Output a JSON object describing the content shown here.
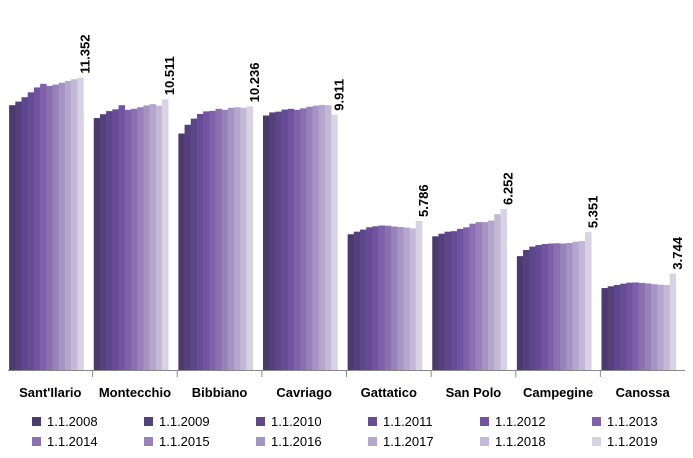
{
  "chart_data": {
    "type": "bar",
    "categories": [
      "Sant'Ilario",
      "Montecchio",
      "Bibbiano",
      "Cavriago",
      "Gattatico",
      "San Polo",
      "Campegine",
      "Canossa"
    ],
    "series": [
      {
        "name": "1.1.2008",
        "color": "#4b3a6b",
        "values": [
          10280,
          9780,
          9180,
          9880,
          5270,
          5190,
          4420,
          3180
        ]
      },
      {
        "name": "1.1.2009",
        "color": "#54407a",
        "values": [
          10420,
          9930,
          9520,
          10000,
          5370,
          5290,
          4660,
          3250
        ]
      },
      {
        "name": "1.1.2010",
        "color": "#5d4689",
        "values": [
          10590,
          10050,
          9760,
          10030,
          5450,
          5370,
          4790,
          3300
        ]
      },
      {
        "name": "1.1.2011",
        "color": "#664c95",
        "values": [
          10780,
          10120,
          9940,
          10110,
          5540,
          5390,
          4850,
          3350
        ]
      },
      {
        "name": "1.1.2012",
        "color": "#7253a1",
        "values": [
          10970,
          10280,
          10040,
          10140,
          5580,
          5480,
          4890,
          3390
        ]
      },
      {
        "name": "1.1.2013",
        "color": "#7e61a9",
        "values": [
          11110,
          10100,
          10060,
          10100,
          5610,
          5540,
          4910,
          3400
        ]
      },
      {
        "name": "1.1.2014",
        "color": "#8b70b1",
        "values": [
          11030,
          10140,
          10140,
          10160,
          5600,
          5680,
          4920,
          3380
        ]
      },
      {
        "name": "1.1.2015",
        "color": "#9881b9",
        "values": [
          11080,
          10200,
          10100,
          10220,
          5570,
          5740,
          4910,
          3360
        ]
      },
      {
        "name": "1.1.2016",
        "color": "#a594c3",
        "values": [
          11150,
          10270,
          10180,
          10260,
          5550,
          5740,
          4930,
          3330
        ]
      },
      {
        "name": "1.1.2017",
        "color": "#b4a6cc",
        "values": [
          11220,
          10320,
          10200,
          10290,
          5530,
          5800,
          4980,
          3310
        ]
      },
      {
        "name": "1.1.2018",
        "color": "#c3b9d7",
        "values": [
          11290,
          10260,
          10180,
          10280,
          5500,
          6050,
          5010,
          3300
        ]
      },
      {
        "name": "1.1.2019",
        "color": "#d8d2e4",
        "values": [
          11352,
          10511,
          10236,
          9911,
          5786,
          6252,
          5351,
          3744
        ]
      }
    ],
    "data_labels": [
      "11.352",
      "10.511",
      "10.236",
      "9.911",
      "5.786",
      "6.252",
      "5.351",
      "3.744"
    ],
    "ylim": [
      0,
      12500
    ],
    "grid": false,
    "legend_position": "bottom",
    "title": "",
    "xlabel": "",
    "ylabel": ""
  }
}
